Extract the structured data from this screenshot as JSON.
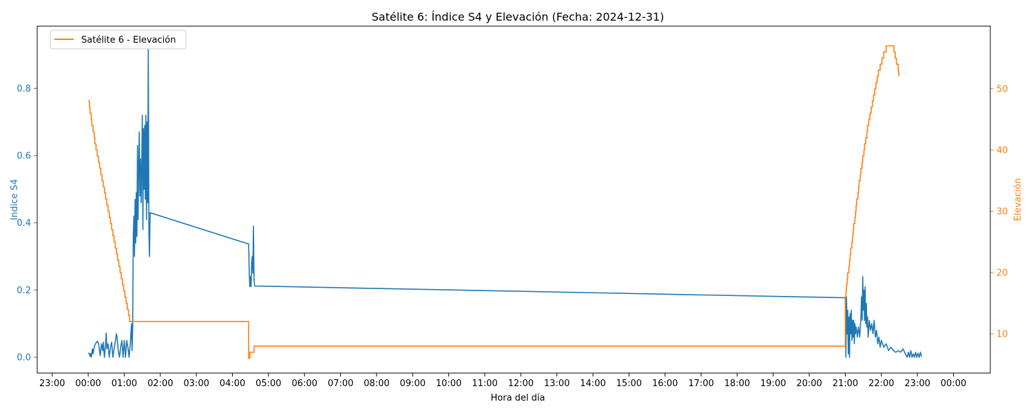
{
  "chart_data": {
    "type": "line",
    "title": "Satélite 6: Índice S4 y Elevación (Fecha: 2024-12-31)",
    "xlabel": "Hora del día",
    "ylabel_left": "Indice S4",
    "ylabel_right": "Elevación",
    "x_ticks": [
      "23:00",
      "00:00",
      "01:00",
      "02:00",
      "03:00",
      "04:00",
      "05:00",
      "06:00",
      "07:00",
      "08:00",
      "09:00",
      "10:00",
      "11:00",
      "12:00",
      "13:00",
      "14:00",
      "15:00",
      "16:00",
      "17:00",
      "18:00",
      "19:00",
      "20:00",
      "21:00",
      "22:00",
      "23:00",
      "00:00"
    ],
    "y_left_ticks": [
      "0.0",
      "0.2",
      "0.4",
      "0.6",
      "0.8"
    ],
    "y_right_ticks": [
      "10",
      "20",
      "30",
      "40",
      "50"
    ],
    "xlim": [
      "2024-12-30 22:30",
      "2025-01-01 00:32"
    ],
    "ylim_left": [
      -0.047,
      0.985
    ],
    "ylim_right": [
      3.6,
      60.2
    ],
    "grid": false,
    "legend_position": "top-left",
    "legend": [
      "Satélite 6 - Elevación"
    ],
    "colors": {
      "s4": "#1f77b4",
      "elevation": "#ff7f0e",
      "axis": "#000000"
    },
    "series": [
      {
        "id": "s4",
        "axis": "left",
        "points": [
          [
            "00:00",
            0.013
          ],
          [
            "00:02",
            0.01
          ],
          [
            "00:03",
            0.003
          ],
          [
            "00:04",
            0.011
          ],
          [
            "00:05",
            0.0
          ],
          [
            "00:07",
            0.025
          ],
          [
            "00:08",
            0.01
          ],
          [
            "00:10",
            0.03
          ],
          [
            "00:12",
            0.04
          ],
          [
            "00:14",
            0.045
          ],
          [
            "00:15",
            0.048
          ],
          [
            "00:17",
            0.042
          ],
          [
            "00:18",
            0.03
          ],
          [
            "00:20",
            0.005
          ],
          [
            "00:22",
            0.04
          ],
          [
            "00:24",
            0.02
          ],
          [
            "00:25",
            0.045
          ],
          [
            "00:27",
            0.0
          ],
          [
            "00:29",
            0.045
          ],
          [
            "00:30",
            0.072
          ],
          [
            "00:31",
            0.025
          ],
          [
            "00:33",
            0.04
          ],
          [
            "00:35",
            0.0
          ],
          [
            "00:37",
            0.03
          ],
          [
            "00:39",
            0.045
          ],
          [
            "00:41",
            0.0
          ],
          [
            "00:43",
            0.025
          ],
          [
            "00:45",
            0.045
          ],
          [
            "00:47",
            0.07
          ],
          [
            "00:48",
            0.06
          ],
          [
            "00:50",
            0.02
          ],
          [
            "00:52",
            0.0
          ],
          [
            "00:54",
            0.03
          ],
          [
            "00:56",
            0.05
          ],
          [
            "00:58",
            0.0
          ],
          [
            "01:00",
            0.05
          ],
          [
            "01:02",
            0.0
          ],
          [
            "01:04",
            0.05
          ],
          [
            "01:06",
            0.03
          ],
          [
            "01:08",
            0.0
          ],
          [
            "01:10",
            0.04
          ],
          [
            "01:12",
            0.1
          ],
          [
            "01:13",
            0.02
          ],
          [
            "01:14",
            0.09
          ],
          [
            "01:15",
            0.36
          ],
          [
            "01:16",
            0.42
          ],
          [
            "01:17",
            0.3
          ],
          [
            "01:18",
            0.47
          ],
          [
            "01:19",
            0.34
          ],
          [
            "01:20",
            0.49
          ],
          [
            "01:21",
            0.36
          ],
          [
            "01:22",
            0.63
          ],
          [
            "01:23",
            0.41
          ],
          [
            "01:24",
            0.57
          ],
          [
            "01:25",
            0.67
          ],
          [
            "01:26",
            0.48
          ],
          [
            "01:27",
            0.59
          ],
          [
            "01:28",
            0.46
          ],
          [
            "01:29",
            0.56
          ],
          [
            "01:30",
            0.72
          ],
          [
            "01:31",
            0.38
          ],
          [
            "01:32",
            0.68
          ],
          [
            "01:33",
            0.5
          ],
          [
            "01:34",
            0.69
          ],
          [
            "01:35",
            0.47
          ],
          [
            "01:36",
            0.72
          ],
          [
            "01:37",
            0.41
          ],
          [
            "01:38",
            0.7
          ],
          [
            "01:39",
            0.46
          ],
          [
            "01:40",
            0.935
          ],
          [
            "01:41",
            0.37
          ],
          [
            "01:42",
            0.3
          ],
          [
            "01:43",
            0.43
          ],
          [
            "04:27",
            0.337
          ],
          [
            "04:28",
            0.25
          ],
          [
            "04:29",
            0.21
          ],
          [
            "04:30",
            0.24
          ],
          [
            "04:31",
            0.21
          ],
          [
            "04:32",
            0.28
          ],
          [
            "04:33",
            0.3
          ],
          [
            "04:34",
            0.25
          ],
          [
            "04:35",
            0.39
          ],
          [
            "04:36",
            0.23
          ],
          [
            "04:37",
            0.212
          ],
          [
            "21:00",
            0.177
          ],
          [
            "21:01",
            0.0
          ],
          [
            "21:02",
            0.18
          ],
          [
            "21:03",
            0.07
          ],
          [
            "21:04",
            0.14
          ],
          [
            "21:05",
            0.01
          ],
          [
            "21:06",
            0.12
          ],
          [
            "21:07",
            0.0
          ],
          [
            "21:08",
            0.13
          ],
          [
            "21:09",
            0.07
          ],
          [
            "21:10",
            0.14
          ],
          [
            "21:11",
            0.05
          ],
          [
            "21:12",
            0.11
          ],
          [
            "21:13",
            0.06
          ],
          [
            "21:14",
            0.11
          ],
          [
            "21:15",
            0.04
          ],
          [
            "21:16",
            0.1
          ],
          [
            "21:17",
            0.07
          ],
          [
            "21:18",
            0.09
          ],
          [
            "21:19",
            0.08
          ],
          [
            "21:20",
            0.06
          ],
          [
            "21:22",
            0.09
          ],
          [
            "21:24",
            0.06
          ],
          [
            "21:26",
            0.12
          ],
          [
            "21:27",
            0.18
          ],
          [
            "21:28",
            0.11
          ],
          [
            "21:29",
            0.24
          ],
          [
            "21:30",
            0.14
          ],
          [
            "21:31",
            0.2
          ],
          [
            "21:32",
            0.11
          ],
          [
            "21:33",
            0.21
          ],
          [
            "21:34",
            0.1
          ],
          [
            "21:35",
            0.16
          ],
          [
            "21:36",
            0.09
          ],
          [
            "21:37",
            0.12
          ],
          [
            "21:38",
            0.06
          ],
          [
            "21:40",
            0.11
          ],
          [
            "21:42",
            0.08
          ],
          [
            "21:44",
            0.1
          ],
          [
            "21:46",
            0.07
          ],
          [
            "21:48",
            0.11
          ],
          [
            "21:50",
            0.06
          ],
          [
            "21:52",
            0.08
          ],
          [
            "21:54",
            0.04
          ],
          [
            "21:56",
            0.06
          ],
          [
            "21:58",
            0.03
          ],
          [
            "22:00",
            0.05
          ],
          [
            "22:04",
            0.03
          ],
          [
            "22:08",
            0.04
          ],
          [
            "22:12",
            0.02
          ],
          [
            "22:16",
            0.03
          ],
          [
            "22:20",
            0.02
          ],
          [
            "22:24",
            0.015
          ],
          [
            "22:28",
            0.02
          ],
          [
            "22:32",
            0.015
          ],
          [
            "22:36",
            0.025
          ],
          [
            "22:40",
            0.01
          ],
          [
            "22:43",
            0.0
          ],
          [
            "22:45",
            0.015
          ],
          [
            "22:47",
            0.0
          ],
          [
            "22:49",
            0.02
          ],
          [
            "22:51",
            0.0
          ],
          [
            "22:53",
            0.01
          ],
          [
            "22:55",
            0.0
          ],
          [
            "22:57",
            0.015
          ],
          [
            "22:59",
            0.0
          ],
          [
            "23:01",
            0.012
          ],
          [
            "23:03",
            0.0
          ],
          [
            "23:05",
            0.015
          ],
          [
            "23:07",
            0.002
          ]
        ]
      },
      {
        "id": "elevation",
        "axis": "right",
        "name": "Satélite 6 - Elevación",
        "step": true,
        "points": [
          [
            "00:00",
            48
          ],
          [
            "00:02",
            47
          ],
          [
            "00:03",
            46
          ],
          [
            "00:05",
            45
          ],
          [
            "00:06",
            44
          ],
          [
            "00:08",
            43
          ],
          [
            "00:10",
            42
          ],
          [
            "00:11",
            41
          ],
          [
            "00:13",
            40
          ],
          [
            "00:15",
            39
          ],
          [
            "00:17",
            38
          ],
          [
            "00:19",
            37
          ],
          [
            "00:21",
            36
          ],
          [
            "00:23",
            35
          ],
          [
            "00:25",
            34
          ],
          [
            "00:27",
            33
          ],
          [
            "00:29",
            32
          ],
          [
            "00:31",
            31
          ],
          [
            "00:33",
            30
          ],
          [
            "00:35",
            29
          ],
          [
            "00:37",
            28
          ],
          [
            "00:39",
            27
          ],
          [
            "00:41",
            26
          ],
          [
            "00:43",
            25
          ],
          [
            "00:45",
            24
          ],
          [
            "00:47",
            23
          ],
          [
            "00:49",
            22
          ],
          [
            "00:51",
            21
          ],
          [
            "00:53",
            20
          ],
          [
            "00:55",
            19
          ],
          [
            "00:57",
            18
          ],
          [
            "00:59",
            17
          ],
          [
            "01:01",
            16
          ],
          [
            "01:03",
            15
          ],
          [
            "01:05",
            14
          ],
          [
            "01:07",
            13
          ],
          [
            "01:09",
            12
          ],
          [
            "04:27",
            6
          ],
          [
            "04:29",
            7
          ],
          [
            "04:36",
            8
          ],
          [
            "21:00",
            16
          ],
          [
            "21:01",
            17
          ],
          [
            "21:02",
            18
          ],
          [
            "21:03",
            19
          ],
          [
            "21:04",
            20
          ],
          [
            "21:06",
            21
          ],
          [
            "21:07",
            22
          ],
          [
            "21:08",
            23
          ],
          [
            "21:09",
            24
          ],
          [
            "21:11",
            25
          ],
          [
            "21:12",
            26
          ],
          [
            "21:13",
            27
          ],
          [
            "21:14",
            28
          ],
          [
            "21:16",
            29
          ],
          [
            "21:17",
            30
          ],
          [
            "21:18",
            31
          ],
          [
            "21:19",
            32
          ],
          [
            "21:21",
            33
          ],
          [
            "21:22",
            34
          ],
          [
            "21:23",
            35
          ],
          [
            "21:25",
            36
          ],
          [
            "21:26",
            37
          ],
          [
            "21:28",
            38
          ],
          [
            "21:29",
            39
          ],
          [
            "21:31",
            40
          ],
          [
            "21:32",
            41
          ],
          [
            "21:34",
            42
          ],
          [
            "21:36",
            43
          ],
          [
            "21:37",
            44
          ],
          [
            "21:39",
            45
          ],
          [
            "21:41",
            46
          ],
          [
            "21:43",
            47
          ],
          [
            "21:45",
            48
          ],
          [
            "21:47",
            49
          ],
          [
            "21:49",
            50
          ],
          [
            "21:51",
            51
          ],
          [
            "21:53",
            52
          ],
          [
            "21:55",
            53
          ],
          [
            "21:58",
            54
          ],
          [
            "22:01",
            55
          ],
          [
            "22:04",
            56
          ],
          [
            "22:08",
            57
          ],
          [
            "22:19",
            57
          ],
          [
            "22:21",
            56
          ],
          [
            "22:23",
            55
          ],
          [
            "22:25",
            54
          ],
          [
            "22:28",
            53
          ],
          [
            "22:29",
            52
          ]
        ]
      }
    ]
  }
}
